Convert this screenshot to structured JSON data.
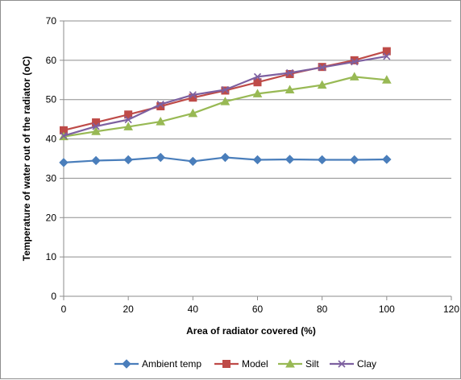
{
  "chart_data": {
    "type": "line",
    "title": "",
    "xlabel": "Area of radiator covered (%)",
    "ylabel": "Temperature of water out of the radiator (oC)",
    "xlim": [
      0,
      120
    ],
    "ylim": [
      0,
      70
    ],
    "x_ticks": [
      "0",
      "20",
      "40",
      "60",
      "80",
      "100",
      "120"
    ],
    "y_ticks": [
      "0",
      "10",
      "20",
      "30",
      "40",
      "50",
      "60",
      "70"
    ],
    "grid": "horizontal",
    "legend_position": "bottom",
    "x": [
      0,
      10,
      20,
      30,
      40,
      50,
      60,
      70,
      80,
      90,
      100
    ],
    "series": [
      {
        "name": "Ambient temp",
        "color": "#4a7ebb",
        "marker": "diamond",
        "values": [
          34.0,
          34.5,
          34.7,
          35.3,
          34.3,
          35.3,
          34.7,
          34.8,
          34.7,
          34.7,
          34.8
        ]
      },
      {
        "name": "Model",
        "color": "#be4b48",
        "marker": "square",
        "values": [
          42.2,
          44.2,
          46.2,
          48.3,
          50.5,
          52.3,
          54.4,
          56.5,
          58.3,
          60.0,
          62.3
        ]
      },
      {
        "name": "Silt",
        "color": "#98b954",
        "marker": "triangle",
        "values": [
          40.6,
          41.9,
          43.1,
          44.4,
          46.5,
          49.5,
          51.5,
          52.5,
          53.7,
          55.8,
          55.0
        ]
      },
      {
        "name": "Clay",
        "color": "#7d60a0",
        "marker": "x",
        "values": [
          40.8,
          43.2,
          44.9,
          48.8,
          51.2,
          52.5,
          55.8,
          56.8,
          58.2,
          59.6,
          61.0
        ]
      }
    ]
  }
}
